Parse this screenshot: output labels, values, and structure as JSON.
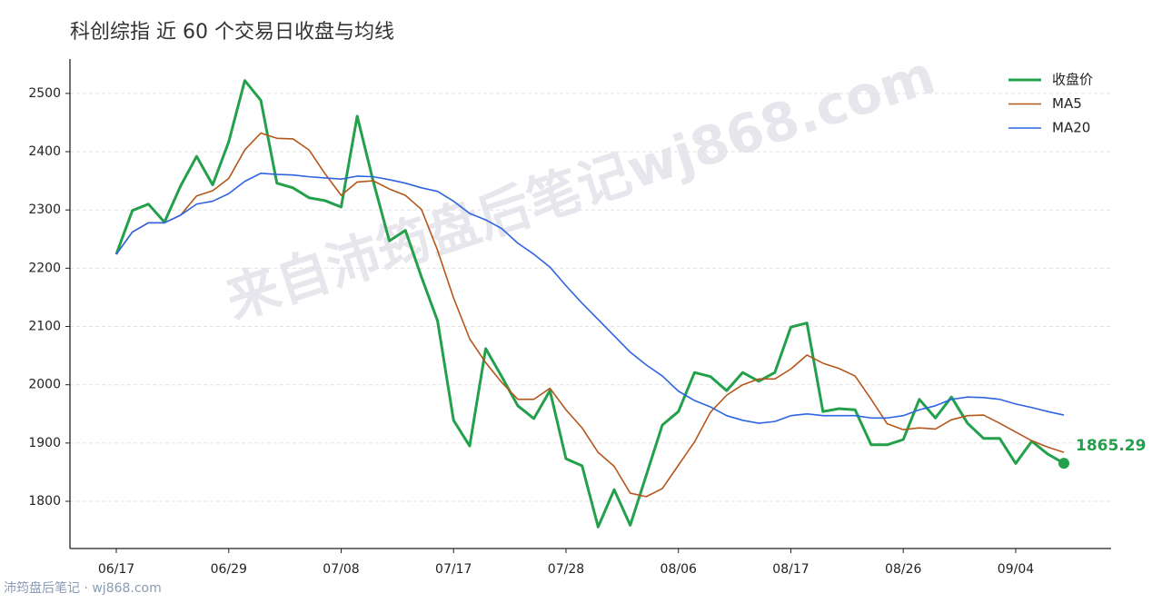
{
  "chart_data": {
    "type": "line",
    "title": "科创综指 近 60 个交易日收盘与均线",
    "watermark": "来自沛筠盘后笔记wj868.com",
    "footer": "沛筠盘后笔记 · wj868.com",
    "categories": [
      "06/17",
      null,
      null,
      null,
      null,
      null,
      null,
      "06/29",
      null,
      null,
      null,
      null,
      null,
      null,
      "07/08",
      null,
      null,
      null,
      null,
      null,
      null,
      "07/17",
      null,
      null,
      null,
      null,
      null,
      null,
      "07/28",
      null,
      null,
      null,
      null,
      null,
      null,
      "08/06",
      null,
      null,
      null,
      null,
      null,
      null,
      "08/17",
      null,
      null,
      null,
      null,
      null,
      null,
      "08/26",
      null,
      null,
      null,
      null,
      null,
      null,
      "09/04",
      null,
      null,
      null
    ],
    "series": [
      {
        "name": "收盘价",
        "color": "#22a04b",
        "width": 3,
        "values": [
          2224,
          2299,
          2310,
          2279,
          2341,
          2392,
          2343,
          2417,
          2522,
          2488,
          2346,
          2338,
          2321,
          2316,
          2305,
          2461,
          2349,
          2247,
          2265,
          2185,
          2110,
          1939,
          1895,
          2062,
          2014,
          1964,
          1942,
          1990,
          1873,
          1861,
          1756,
          1820,
          1759,
          1845,
          1931,
          1954,
          2021,
          2014,
          1990,
          2021,
          2006,
          2021,
          2099,
          2106,
          1954,
          1959,
          1957,
          1897,
          1897,
          1906,
          1975,
          1943,
          1979,
          1934,
          1908,
          1908,
          1865,
          1903,
          1881,
          1865.29
        ]
      },
      {
        "name": "MA5",
        "color": "#b5561a",
        "width": 1.6,
        "values": [
          2224,
          2262,
          2278,
          2278,
          2291,
          2324,
          2333,
          2354,
          2403,
          2432,
          2423,
          2422,
          2403,
          2362,
          2325,
          2348,
          2350,
          2336,
          2325,
          2301,
          2231,
          2149,
          2079,
          2038,
          2004,
          1975,
          1975,
          1994,
          1957,
          1926,
          1884,
          1860,
          1814,
          1808,
          1822,
          1862,
          1902,
          1953,
          1982,
          2000,
          2010,
          2010,
          2027,
          2051,
          2037,
          2028,
          2015,
          1975,
          1933,
          1923,
          1926,
          1924,
          1940,
          1947,
          1948,
          1934,
          1919,
          1904,
          1893,
          1884
        ]
      },
      {
        "name": "MA20",
        "color": "#2f64e0",
        "width": 1.6,
        "values": [
          2224,
          2262,
          2278,
          2278,
          2291,
          2310,
          2315,
          2328,
          2349,
          2363,
          2361,
          2360,
          2357,
          2355,
          2353,
          2358,
          2357,
          2352,
          2346,
          2338,
          2332,
          2315,
          2294,
          2283,
          2268,
          2243,
          2224,
          2202,
          2170,
          2140,
          2112,
          2084,
          2056,
          2034,
          2015,
          1989,
          1973,
          1962,
          1947,
          1939,
          1934,
          1937,
          1947,
          1950,
          1947,
          1947,
          1947,
          1943,
          1943,
          1947,
          1957,
          1964,
          1975,
          1979,
          1978,
          1975,
          1967,
          1961,
          1954,
          1948
        ]
      }
    ],
    "ylim": [
      1719,
      2559
    ],
    "yticks": [
      1800,
      1900,
      2000,
      2100,
      2200,
      2300,
      2400,
      2500
    ],
    "grid": true,
    "legend": "upper right",
    "last_label_series": 0
  }
}
